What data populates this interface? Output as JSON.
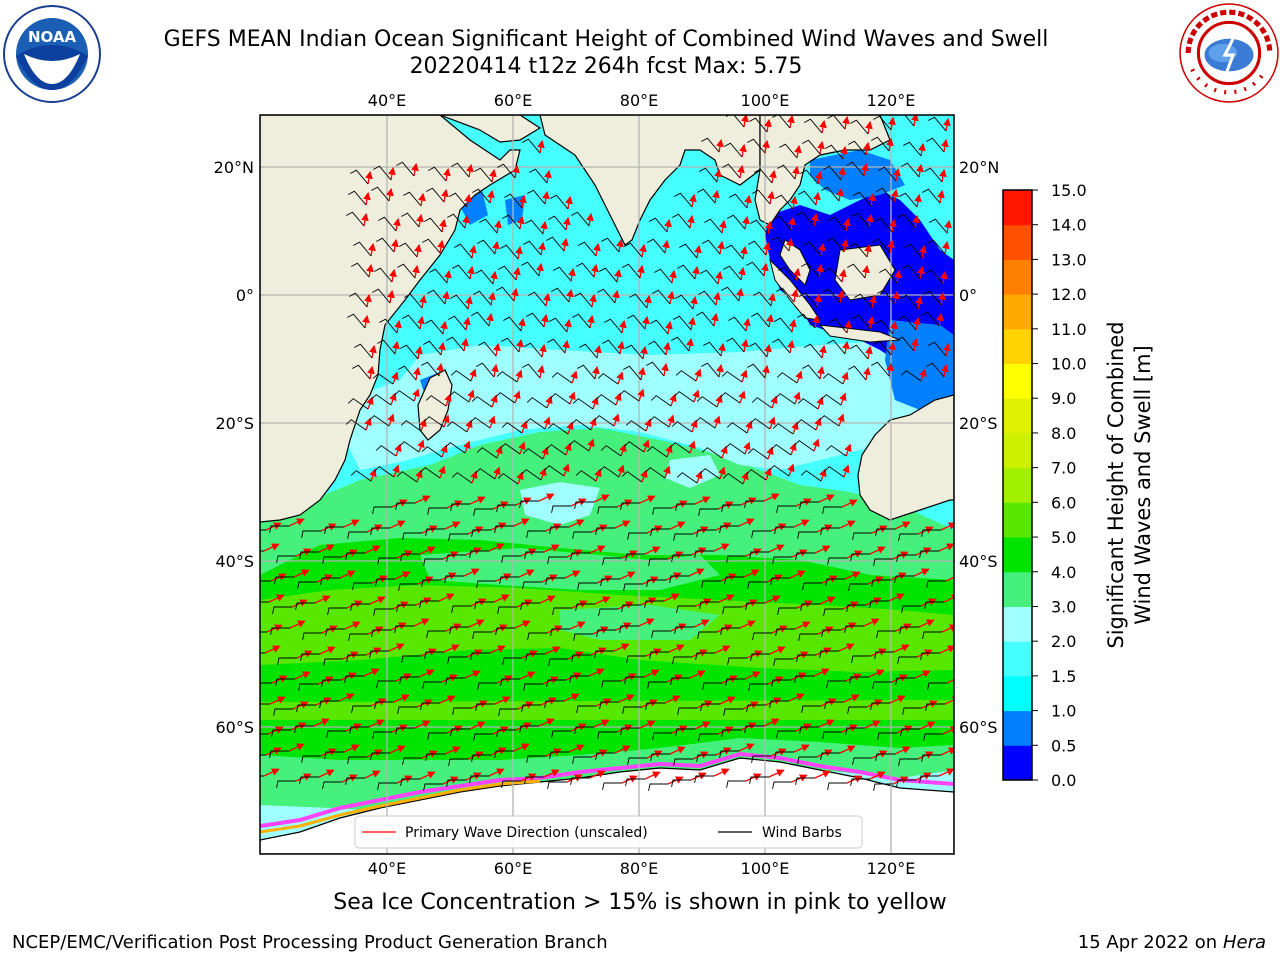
{
  "header": {
    "title_line1": "GEFS MEAN Indian Ocean Significant Height of Combined Wind Waves and Swell",
    "title_line2": "20220414 t12z 264h fcst   Max: 5.75"
  },
  "logos": {
    "left": {
      "icon": "noaa-logo-icon",
      "text": "NOAA",
      "ring_text": "NATIONAL OCEANIC AND ATMOSPHERIC ADMINISTRATION · U.S. DEPARTMENT OF COMMERCE"
    },
    "right": {
      "icon": "nws-logo-icon",
      "ring_text": "NATIONAL WEATHER SERVICE"
    }
  },
  "map": {
    "lon_labels": [
      "40°E",
      "60°E",
      "80°E",
      "100°E",
      "120°E"
    ],
    "lat_labels": [
      "20°N",
      "0°",
      "20°S",
      "40°S",
      "60°S"
    ],
    "legend": {
      "wave_direction": "Primary Wave Direction (unscaled)",
      "wind_barbs": "Wind Barbs"
    },
    "colors": {
      "land": "#efeedc",
      "ice_white": "#ffffff",
      "ice_pink": "#ff44ff",
      "grid": "#b4b4b4",
      "arrow": "#ff0000",
      "barb": "#000000"
    }
  },
  "colorbar": {
    "label_line1": "Significant Height of Combined",
    "label_line2": "Wind Waves and Swell [m]",
    "ticks": [
      "0.0",
      "0.5",
      "1.0",
      "1.5",
      "2.0",
      "3.0",
      "4.0",
      "5.0",
      "6.0",
      "7.0",
      "8.0",
      "9.0",
      "10.0",
      "11.0",
      "12.0",
      "13.0",
      "14.0",
      "15.0"
    ],
    "colors": [
      "#0000ff",
      "#0080ff",
      "#00ffff",
      "#46ffff",
      "#a0ffff",
      "#46f07c",
      "#00e400",
      "#58e800",
      "#a0f000",
      "#cbf000",
      "#e0f000",
      "#ffff00",
      "#ffd200",
      "#ffaa00",
      "#ff8000",
      "#ff5000",
      "#ff1500"
    ]
  },
  "footer": {
    "ice_note": "Sea Ice Concentration > 15% is shown in pink to yellow",
    "credit": "NCEP/EMC/Verification Post Processing Product Generation Branch",
    "date": "15 Apr 2022 on ",
    "machine": "Hera"
  }
}
